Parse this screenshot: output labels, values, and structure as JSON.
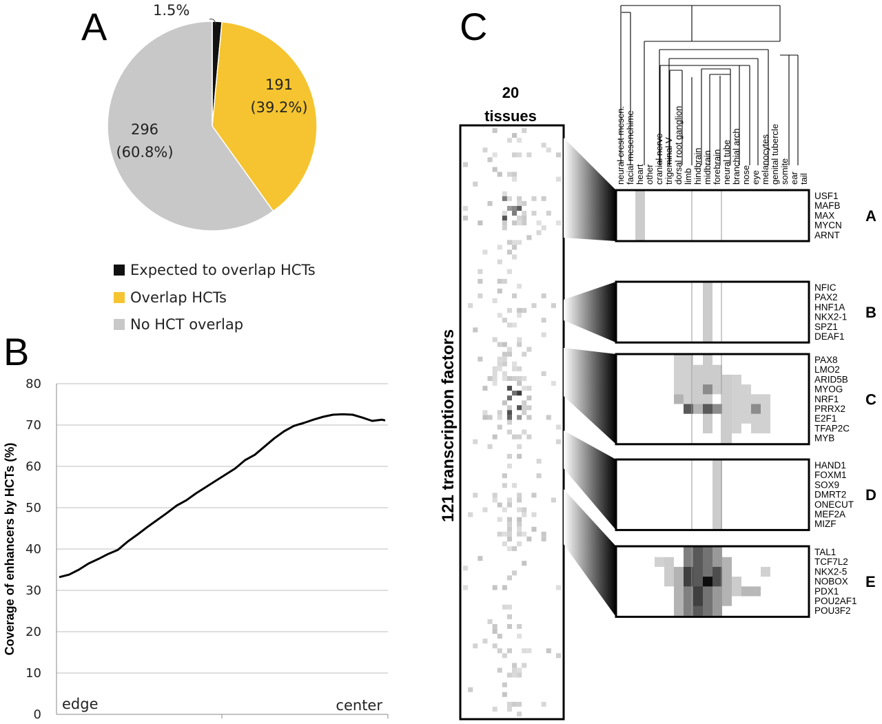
{
  "panels": {
    "a": "A",
    "b": "B",
    "c": "C"
  },
  "chart_data": [
    {
      "type": "pie",
      "panel": "A",
      "slices": [
        {
          "name": "Expected to overlap HCTs",
          "value": 1.5,
          "label": "1.5%",
          "color": "#111111"
        },
        {
          "name": "Overlap HCTs",
          "value": 39.2,
          "count": "191",
          "label": "(39.2%)",
          "color": "#F5C430"
        },
        {
          "name": "No HCT overlap",
          "value": 60.8,
          "count": "296",
          "label": "(60.8%)",
          "color": "#C8C8C8"
        }
      ],
      "legend": [
        "Expected to overlap HCTs",
        "Overlap HCTs",
        "No HCT overlap"
      ],
      "legend_placement": "bottom"
    },
    {
      "type": "line",
      "panel": "B",
      "ylabel": "Coverage of enhancers by HCTs (%)",
      "ylim": [
        0,
        80
      ],
      "yticks": [
        "0",
        "10",
        "20",
        "30",
        "40",
        "50",
        "60",
        "70",
        "80"
      ],
      "xlim": [
        0,
        100
      ],
      "x_annotations": {
        "left": "edge",
        "right": "center"
      },
      "grid": true,
      "x": [
        0,
        3,
        6,
        9,
        12,
        15,
        18,
        21,
        24,
        27,
        30,
        33,
        36,
        39,
        42,
        45,
        48,
        51,
        54,
        57,
        60,
        63,
        66,
        69,
        72,
        75,
        78,
        81,
        84,
        87,
        90,
        93,
        96,
        99,
        100
      ],
      "values": [
        33.2,
        33.8,
        35.0,
        36.5,
        37.6,
        38.8,
        39.8,
        41.8,
        43.5,
        45.3,
        47.0,
        48.7,
        50.5,
        51.8,
        53.5,
        55.0,
        56.5,
        58.0,
        59.5,
        61.5,
        62.8,
        64.8,
        66.8,
        68.5,
        69.8,
        70.5,
        71.3,
        72.0,
        72.5,
        72.6,
        72.5,
        71.8,
        71.0,
        71.3,
        71.1
      ]
    },
    {
      "type": "heatmap",
      "panel": "C",
      "overview_title": "20\ntissues",
      "overview_title_lines": [
        "20",
        "tissues"
      ],
      "overview_ylabel": "121 transcription factors",
      "tissues": [
        "neural crest mesen.",
        "facial mesenchime",
        "heart",
        "other",
        "cranial nerve",
        "trigeminal V",
        "dorsal root ganglion",
        "limb",
        "hindbrain",
        "midbrain",
        "forebrain",
        "neural tube",
        "branchial arch",
        "nose",
        "eye",
        "melanocytes",
        "genital tubercle",
        "somite",
        "ear",
        "tail"
      ],
      "groups": [
        {
          "letter": "A",
          "genes": [
            "USF1",
            "MAFB",
            "MAX",
            "MYCN",
            "ARNT"
          ],
          "cells": [
            [
              2,
              0,
              5,
              0.2
            ]
          ]
        },
        {
          "letter": "B",
          "genes": [
            "NFIC",
            "PAX2",
            "HNF1A",
            "NKX2-1",
            "SPZ1",
            "DEAF1"
          ],
          "cells": [
            [
              9,
              0,
              6,
              0.2
            ]
          ]
        },
        {
          "letter": "C",
          "genes": [
            "PAX8",
            "LMO2",
            "ARID5B",
            "MYOG",
            "NRF1",
            "PRRX2",
            "E2F1",
            "TFAP2C",
            "MYB"
          ],
          "cells": [
            [
              6,
              0,
              4,
              0.18
            ],
            [
              7,
              0,
              6,
              0.18
            ],
            [
              8,
              1,
              5,
              0.2
            ],
            [
              9,
              0,
              8,
              0.2
            ],
            [
              10,
              1,
              3,
              0.2
            ],
            [
              11,
              2,
              7,
              0.2
            ],
            [
              12,
              2,
              6,
              0.18
            ],
            [
              13,
              3,
              4,
              0.18
            ],
            [
              14,
              4,
              4,
              0.18
            ],
            [
              15,
              4,
              4,
              0.18
            ],
            [
              6,
              4,
              1,
              0.3
            ],
            [
              7,
              5,
              1,
              0.65
            ],
            [
              8,
              5,
              1,
              0.3
            ],
            [
              9,
              5,
              1,
              0.65
            ],
            [
              10,
              5,
              1,
              0.45
            ],
            [
              14,
              5,
              1,
              0.45
            ],
            [
              9,
              3,
              1,
              0.45
            ]
          ]
        },
        {
          "letter": "D",
          "genes": [
            "HAND1",
            "FOXM1",
            "SOX9",
            "DMRT2",
            "ONECUT",
            "MEF2A",
            "MIZF"
          ],
          "cells": [
            [
              10,
              0,
              7,
              0.2
            ]
          ]
        },
        {
          "letter": "E",
          "genes": [
            "TAL1",
            "TCF7L2",
            "NKX2-5",
            "NOBOX",
            "PDX1",
            "POU2AF1",
            "POU3F2"
          ],
          "cells": [
            [
              4,
              1,
              1,
              0.18
            ],
            [
              5,
              1,
              3,
              0.2
            ],
            [
              6,
              2,
              5,
              0.3
            ],
            [
              7,
              0,
              7,
              0.5
            ],
            [
              8,
              0,
              7,
              0.65
            ],
            [
              9,
              0,
              7,
              0.55
            ],
            [
              10,
              0,
              7,
              0.4
            ],
            [
              11,
              1,
              5,
              0.3
            ],
            [
              12,
              3,
              2,
              0.2
            ],
            [
              13,
              4,
              1,
              0.28
            ],
            [
              14,
              4,
              1,
              0.28
            ],
            [
              15,
              2,
              1,
              0.18
            ],
            [
              9,
              3,
              1,
              0.95
            ],
            [
              10,
              2,
              2,
              0.7
            ],
            [
              7,
              2,
              2,
              0.75
            ],
            [
              8,
              4,
              2,
              0.75
            ]
          ]
        }
      ]
    }
  ]
}
